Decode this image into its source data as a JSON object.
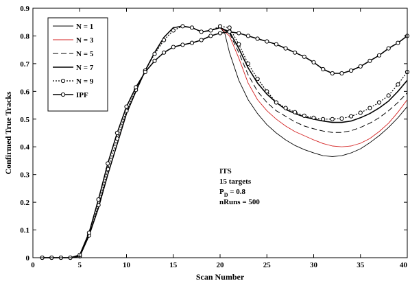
{
  "chart_data": {
    "type": "line",
    "xlabel": "Scan Number",
    "ylabel": "Confirmed True Tracks",
    "xlim": [
      0,
      40
    ],
    "ylim": [
      0,
      0.9
    ],
    "xticks": [
      "0",
      "5",
      "10",
      "15",
      "20",
      "25",
      "30",
      "35",
      "40"
    ],
    "yticks": [
      "0",
      "0.1",
      "0.2",
      "0.3",
      "0.4",
      "0.5",
      "0.6",
      "0.7",
      "0.8",
      "0.9"
    ],
    "grid": false,
    "legend_position": "top-left",
    "annotation": {
      "lines": [
        "ITS",
        "15 targets"
      ],
      "pd_base": "P",
      "pd_sub": "D",
      "pd_rest": " = 0.8",
      "nruns": "nRuns = 500"
    },
    "series": [
      {
        "name": "N = 1",
        "color": "#000000",
        "style": "thin",
        "marker": "none",
        "x": [
          1,
          2,
          3,
          4,
          5,
          6,
          7,
          8,
          9,
          10,
          11,
          12,
          13,
          14,
          15,
          16,
          17,
          18,
          19,
          20,
          20.5,
          21,
          22,
          23,
          24,
          25,
          26,
          27,
          28,
          29,
          30,
          31,
          32,
          33,
          34,
          35,
          36,
          37,
          38,
          39,
          40
        ],
        "y": [
          0,
          0,
          0,
          0,
          0.005,
          0.08,
          0.18,
          0.3,
          0.41,
          0.52,
          0.6,
          0.675,
          0.74,
          0.795,
          0.83,
          0.835,
          0.83,
          0.815,
          0.82,
          0.83,
          0.81,
          0.74,
          0.64,
          0.57,
          0.52,
          0.48,
          0.45,
          0.425,
          0.405,
          0.39,
          0.378,
          0.368,
          0.365,
          0.368,
          0.378,
          0.393,
          0.415,
          0.44,
          0.47,
          0.505,
          0.545
        ]
      },
      {
        "name": "N = 3",
        "color": "#d42020",
        "style": "thin",
        "marker": "none",
        "x": [
          1,
          2,
          3,
          4,
          5,
          6,
          7,
          8,
          9,
          10,
          11,
          12,
          13,
          14,
          15,
          16,
          17,
          18,
          19,
          20,
          21,
          22,
          23,
          24,
          25,
          26,
          27,
          28,
          29,
          30,
          31,
          32,
          33,
          34,
          35,
          36,
          37,
          38,
          39,
          40
        ],
        "y": [
          0,
          0,
          0,
          0,
          0.005,
          0.08,
          0.18,
          0.3,
          0.41,
          0.52,
          0.6,
          0.675,
          0.74,
          0.795,
          0.83,
          0.835,
          0.83,
          0.815,
          0.82,
          0.83,
          0.8,
          0.72,
          0.63,
          0.57,
          0.53,
          0.5,
          0.475,
          0.455,
          0.44,
          0.425,
          0.412,
          0.403,
          0.4,
          0.403,
          0.413,
          0.43,
          0.455,
          0.485,
          0.525,
          0.57
        ]
      },
      {
        "name": "N = 5",
        "color": "#000000",
        "style": "dashed",
        "marker": "none",
        "x": [
          1,
          2,
          3,
          4,
          5,
          6,
          7,
          8,
          9,
          10,
          11,
          12,
          13,
          14,
          15,
          16,
          17,
          18,
          19,
          20,
          21,
          22,
          23,
          24,
          25,
          26,
          27,
          28,
          29,
          30,
          31,
          32,
          33,
          34,
          35,
          36,
          37,
          38,
          39,
          40
        ],
        "y": [
          0,
          0,
          0,
          0,
          0.005,
          0.08,
          0.18,
          0.3,
          0.41,
          0.52,
          0.6,
          0.675,
          0.74,
          0.795,
          0.83,
          0.835,
          0.83,
          0.815,
          0.82,
          0.83,
          0.81,
          0.74,
          0.66,
          0.6,
          0.56,
          0.53,
          0.51,
          0.49,
          0.475,
          0.465,
          0.457,
          0.452,
          0.452,
          0.458,
          0.47,
          0.485,
          0.505,
          0.53,
          0.56,
          0.595
        ]
      },
      {
        "name": "N = 7",
        "color": "#000000",
        "style": "solid",
        "marker": "none",
        "x": [
          1,
          2,
          3,
          4,
          5,
          6,
          7,
          8,
          9,
          10,
          11,
          12,
          13,
          14,
          15,
          16,
          17,
          18,
          19,
          20,
          21,
          22,
          23,
          24,
          25,
          26,
          27,
          28,
          29,
          30,
          31,
          32,
          33,
          34,
          35,
          36,
          37,
          38,
          39,
          40
        ],
        "y": [
          0,
          0,
          0,
          0,
          0.005,
          0.08,
          0.18,
          0.3,
          0.41,
          0.52,
          0.6,
          0.675,
          0.74,
          0.795,
          0.83,
          0.835,
          0.83,
          0.815,
          0.82,
          0.83,
          0.815,
          0.755,
          0.685,
          0.63,
          0.59,
          0.56,
          0.535,
          0.52,
          0.508,
          0.5,
          0.493,
          0.488,
          0.488,
          0.493,
          0.505,
          0.52,
          0.54,
          0.565,
          0.6,
          0.64
        ]
      },
      {
        "name": "N = 9",
        "color": "#000000",
        "style": "dotted",
        "marker": "circle",
        "x": [
          1,
          2,
          3,
          4,
          5,
          6,
          7,
          8,
          9,
          10,
          11,
          12,
          13,
          14,
          15,
          16,
          17,
          18,
          19,
          20,
          21,
          22,
          23,
          24,
          25,
          26,
          27,
          28,
          29,
          30,
          31,
          32,
          33,
          34,
          35,
          36,
          37,
          38,
          39,
          40
        ],
        "y": [
          0,
          0,
          0,
          0,
          0.005,
          0.08,
          0.19,
          0.32,
          0.43,
          0.53,
          0.605,
          0.675,
          0.735,
          0.785,
          0.82,
          0.835,
          0.83,
          0.815,
          0.82,
          0.835,
          0.83,
          0.77,
          0.7,
          0.645,
          0.6,
          0.56,
          0.54,
          0.525,
          0.512,
          0.505,
          0.5,
          0.5,
          0.502,
          0.51,
          0.523,
          0.54,
          0.56,
          0.585,
          0.625,
          0.67
        ]
      },
      {
        "name": "IPF",
        "color": "#000000",
        "style": "solid",
        "marker": "circle",
        "x": [
          1,
          2,
          3,
          4,
          5,
          6,
          7,
          8,
          9,
          10,
          11,
          12,
          13,
          14,
          15,
          16,
          17,
          18,
          19,
          20,
          21,
          22,
          23,
          24,
          25,
          26,
          27,
          28,
          29,
          30,
          31,
          32,
          33,
          34,
          35,
          36,
          37,
          38,
          39,
          40
        ],
        "y": [
          0,
          0,
          0,
          0,
          0.01,
          0.09,
          0.21,
          0.34,
          0.45,
          0.545,
          0.615,
          0.67,
          0.71,
          0.74,
          0.76,
          0.768,
          0.775,
          0.785,
          0.8,
          0.81,
          0.815,
          0.81,
          0.8,
          0.79,
          0.78,
          0.77,
          0.755,
          0.74,
          0.725,
          0.705,
          0.68,
          0.665,
          0.665,
          0.675,
          0.69,
          0.71,
          0.73,
          0.755,
          0.775,
          0.8
        ]
      }
    ]
  }
}
